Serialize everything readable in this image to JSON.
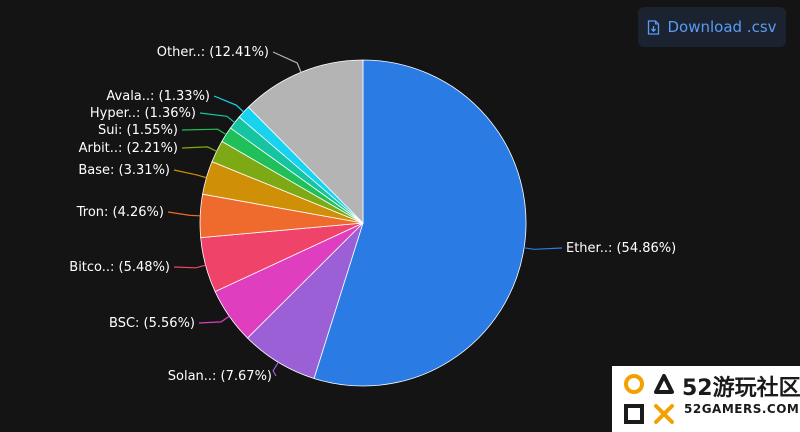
{
  "download_button": {
    "label": "Download .csv",
    "icon": "download-file-icon"
  },
  "chart_data": {
    "type": "pie",
    "title": "",
    "legend": "none",
    "slices": [
      {
        "label": "Ether..",
        "value": 54.86,
        "display": "Ether..: (54.86%)",
        "color": "#2b7be4"
      },
      {
        "label": "Solan..",
        "value": 7.67,
        "display": "Solan..: (7.67%)",
        "color": "#9b5fd6"
      },
      {
        "label": "BSC",
        "value": 5.56,
        "display": "BSC: (5.56%)",
        "color": "#df3fbf"
      },
      {
        "label": "Bitco..",
        "value": 5.48,
        "display": "Bitco..: (5.48%)",
        "color": "#f0436a"
      },
      {
        "label": "Tron",
        "value": 4.26,
        "display": "Tron: (4.26%)",
        "color": "#ee6a2d"
      },
      {
        "label": "Base",
        "value": 3.31,
        "display": "Base: (3.31%)",
        "color": "#cf8f06"
      },
      {
        "label": "Arbit..",
        "value": 2.21,
        "display": "Arbit..: (2.21%)",
        "color": "#7daa14"
      },
      {
        "label": "Sui",
        "value": 1.55,
        "display": "Sui: (1.55%)",
        "color": "#1fbf59"
      },
      {
        "label": "Hyper..",
        "value": 1.36,
        "display": "Hyper..: (1.36%)",
        "color": "#16c4a1"
      },
      {
        "label": "Avala..",
        "value": 1.33,
        "display": "Avala..: (1.33%)",
        "color": "#18d3f0"
      },
      {
        "label": "Other..",
        "value": 12.41,
        "display": "Other..: (12.41%)",
        "color": "#b4b4b4"
      }
    ]
  },
  "watermark": {
    "title": "52游玩社区",
    "subtitle": "52GAMERS.COM",
    "logo": "playstation-symbols-logo"
  }
}
